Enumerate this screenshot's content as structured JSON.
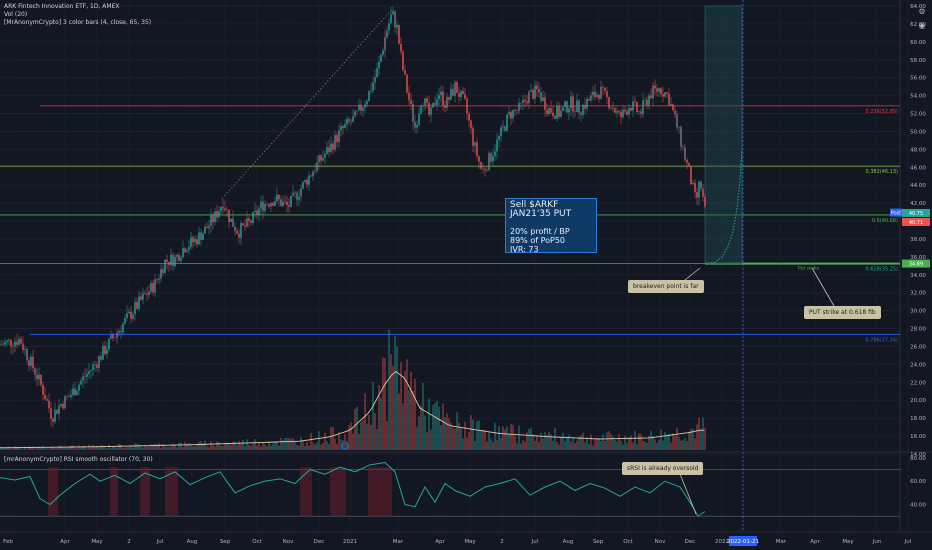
{
  "header": {
    "title": "ARK Fintech Innovation ETF, 1D, AMEX",
    "volume_label": "Vol (20)",
    "indicator_label": "[MrAnonymCrypto] 3 color bars (4, close, 65, 35)",
    "oscillator_label": "[mrAnonymCrypto] RSI smooth oscillator (70, 30)"
  },
  "annotations": {
    "trade_title": "Sell $ARKF JAN21'35 PUT",
    "trade_line1": "20% profit / BP",
    "trade_line2": "89% of PoP50",
    "trade_line3": "IVR: 73",
    "breakeven_note": "breakeven point is far",
    "strike_note": "PUT strike at 0.618 fib",
    "srsi_note": "sRSI is already oversold",
    "put_strike_label": "Put strike"
  },
  "colors": {
    "background": "#131722",
    "up": "#26a69a",
    "down": "#ef5350",
    "neutral_bar": "#787b86",
    "fib_0236": "#f23645",
    "fib_0382": "#8bc34a",
    "fib_05": "#4caf50",
    "fib_0618": "#26a69a",
    "fib_0786": "#2962ff",
    "projection_box": "#1e4b52",
    "volume_ma": "#e0c9a6",
    "osc_line": "#26a69a"
  },
  "icons": [
    "gear-icon",
    "camera-icon"
  ],
  "chart_data": [
    {
      "type": "candlestick",
      "title": "ARK Fintech Innovation ETF, 1D, AMEX",
      "x_ticks": [
        "Feb",
        "Apr",
        "May",
        "2",
        "Jul",
        "Aug",
        "Sep",
        "Oct",
        "Nov",
        "Dec",
        "2021",
        "Mar",
        "Apr",
        "May",
        "2",
        "Jul",
        "Aug",
        "Sep",
        "Oct",
        "Nov",
        "Dec",
        "2022",
        "2022-01-21",
        "Mar",
        "Apr",
        "May",
        "Jun",
        "Jul"
      ],
      "y_ticks": [
        14,
        16,
        18,
        20,
        22,
        24,
        26,
        28,
        30,
        32,
        34,
        36,
        38,
        40,
        42,
        44,
        46,
        48,
        50,
        52,
        54,
        56,
        58,
        60,
        62,
        64
      ],
      "ylim": [
        14,
        64
      ],
      "price_path": [
        [
          0,
          26.2
        ],
        [
          10,
          26.5
        ],
        [
          20,
          26.8
        ],
        [
          28,
          24.8
        ],
        [
          36,
          23.0
        ],
        [
          44,
          20.8
        ],
        [
          52,
          18.2
        ],
        [
          60,
          19.5
        ],
        [
          70,
          20.5
        ],
        [
          80,
          22.0
        ],
        [
          95,
          24.0
        ],
        [
          110,
          26.5
        ],
        [
          125,
          28.8
        ],
        [
          140,
          31.0
        ],
        [
          155,
          33.0
        ],
        [
          165,
          35.5
        ],
        [
          175,
          35.8
        ],
        [
          185,
          37.2
        ],
        [
          195,
          37.8
        ],
        [
          205,
          39.0
        ],
        [
          215,
          40.5
        ],
        [
          223,
          42.2
        ],
        [
          230,
          40.2
        ],
        [
          238,
          38.8
        ],
        [
          250,
          39.8
        ],
        [
          262,
          41.8
        ],
        [
          275,
          42.5
        ],
        [
          288,
          41.6
        ],
        [
          300,
          43.5
        ],
        [
          315,
          46.0
        ],
        [
          330,
          48.2
        ],
        [
          342,
          50.2
        ],
        [
          355,
          51.5
        ],
        [
          368,
          54.0
        ],
        [
          378,
          57.0
        ],
        [
          386,
          61.0
        ],
        [
          392,
          63.2
        ],
        [
          397,
          61.5
        ],
        [
          402,
          57.5
        ],
        [
          408,
          54.0
        ],
        [
          415,
          50.5
        ],
        [
          422,
          54.0
        ],
        [
          430,
          51.5
        ],
        [
          438,
          54.5
        ],
        [
          446,
          53.0
        ],
        [
          455,
          55.0
        ],
        [
          465,
          53.0
        ],
        [
          474,
          48.5
        ],
        [
          482,
          45.5
        ],
        [
          490,
          47.0
        ],
        [
          500,
          49.5
        ],
        [
          510,
          52.0
        ],
        [
          520,
          52.5
        ],
        [
          528,
          54.0
        ],
        [
          538,
          54.5
        ],
        [
          548,
          52.5
        ],
        [
          560,
          52.0
        ],
        [
          570,
          53.2
        ],
        [
          580,
          52.5
        ],
        [
          592,
          53.8
        ],
        [
          600,
          54.5
        ],
        [
          610,
          53.2
        ],
        [
          620,
          51.5
        ],
        [
          630,
          53.0
        ],
        [
          640,
          52.0
        ],
        [
          650,
          54.2
        ],
        [
          660,
          54.8
        ],
        [
          668,
          54.0
        ],
        [
          676,
          51.0
        ],
        [
          683,
          48.0
        ],
        [
          690,
          45.0
        ],
        [
          696,
          42.0
        ],
        [
          700,
          44.5
        ],
        [
          705,
          41.0
        ]
      ],
      "price_labels": [
        "40.75",
        "40.71",
        "Post",
        "34.89"
      ],
      "fib_levels": [
        {
          "ratio": "0.236",
          "value": 52.85,
          "label": "0.236(52.85)"
        },
        {
          "ratio": "0.382",
          "value": 46.13,
          "label": "0.382(46.13)"
        },
        {
          "ratio": "0.5",
          "value": 40.68,
          "label": "0.5(40.68)"
        },
        {
          "ratio": "0.618",
          "value": 35.25,
          "label": "0.618(35.25)"
        },
        {
          "ratio": "0.786",
          "value": 27.36,
          "label": "0.786(27.36)"
        }
      ],
      "projection": {
        "top": 64,
        "bottom": 35.25,
        "start": "Dec",
        "end": "2022"
      },
      "projection_curve": [
        [
          705,
          35.25
        ],
        [
          715,
          35.4
        ],
        [
          722,
          36.0
        ],
        [
          728,
          37.2
        ],
        [
          733,
          38.8
        ],
        [
          737,
          41.5
        ],
        [
          740,
          44.5
        ],
        [
          742,
          48.0
        ]
      ],
      "ath_dotted": {
        "from": [
          222,
          42.5
        ],
        "to": [
          392,
          63.6
        ]
      }
    },
    {
      "type": "bar",
      "name": "Vol (20)",
      "x": [
        0,
        100,
        200,
        300,
        330,
        350,
        370,
        385,
        395,
        405,
        420,
        450,
        500,
        550,
        600,
        650,
        690,
        700
      ],
      "ma_values": [
        0.02,
        0.03,
        0.05,
        0.08,
        0.12,
        0.18,
        0.35,
        0.6,
        0.72,
        0.65,
        0.38,
        0.22,
        0.15,
        0.12,
        0.1,
        0.11,
        0.16,
        0.18
      ]
    },
    {
      "type": "line",
      "name": "[mrAnonymCrypto] RSI smooth oscillator (70, 30)",
      "y_ticks": [
        40,
        60,
        80
      ],
      "ylim": [
        25,
        85
      ],
      "levels": [
        70,
        30
      ],
      "x": [
        0,
        15,
        30,
        40,
        50,
        60,
        75,
        90,
        100,
        115,
        130,
        145,
        160,
        175,
        190,
        205,
        220,
        235,
        250,
        265,
        280,
        295,
        310,
        325,
        340,
        355,
        370,
        385,
        395,
        405,
        415,
        425,
        435,
        445,
        455,
        470,
        485,
        500,
        515,
        530,
        545,
        560,
        575,
        590,
        605,
        620,
        635,
        650,
        665,
        680,
        690,
        698,
        705
      ],
      "values": [
        63,
        61,
        64,
        45,
        40,
        48,
        58,
        66,
        60,
        65,
        58,
        67,
        62,
        68,
        57,
        63,
        68,
        50,
        56,
        60,
        62,
        58,
        70,
        66,
        72,
        68,
        74,
        76,
        68,
        40,
        38,
        55,
        42,
        58,
        52,
        47,
        55,
        58,
        62,
        48,
        55,
        60,
        52,
        58,
        54,
        47,
        55,
        50,
        60,
        55,
        42,
        30,
        34
      ]
    }
  ]
}
